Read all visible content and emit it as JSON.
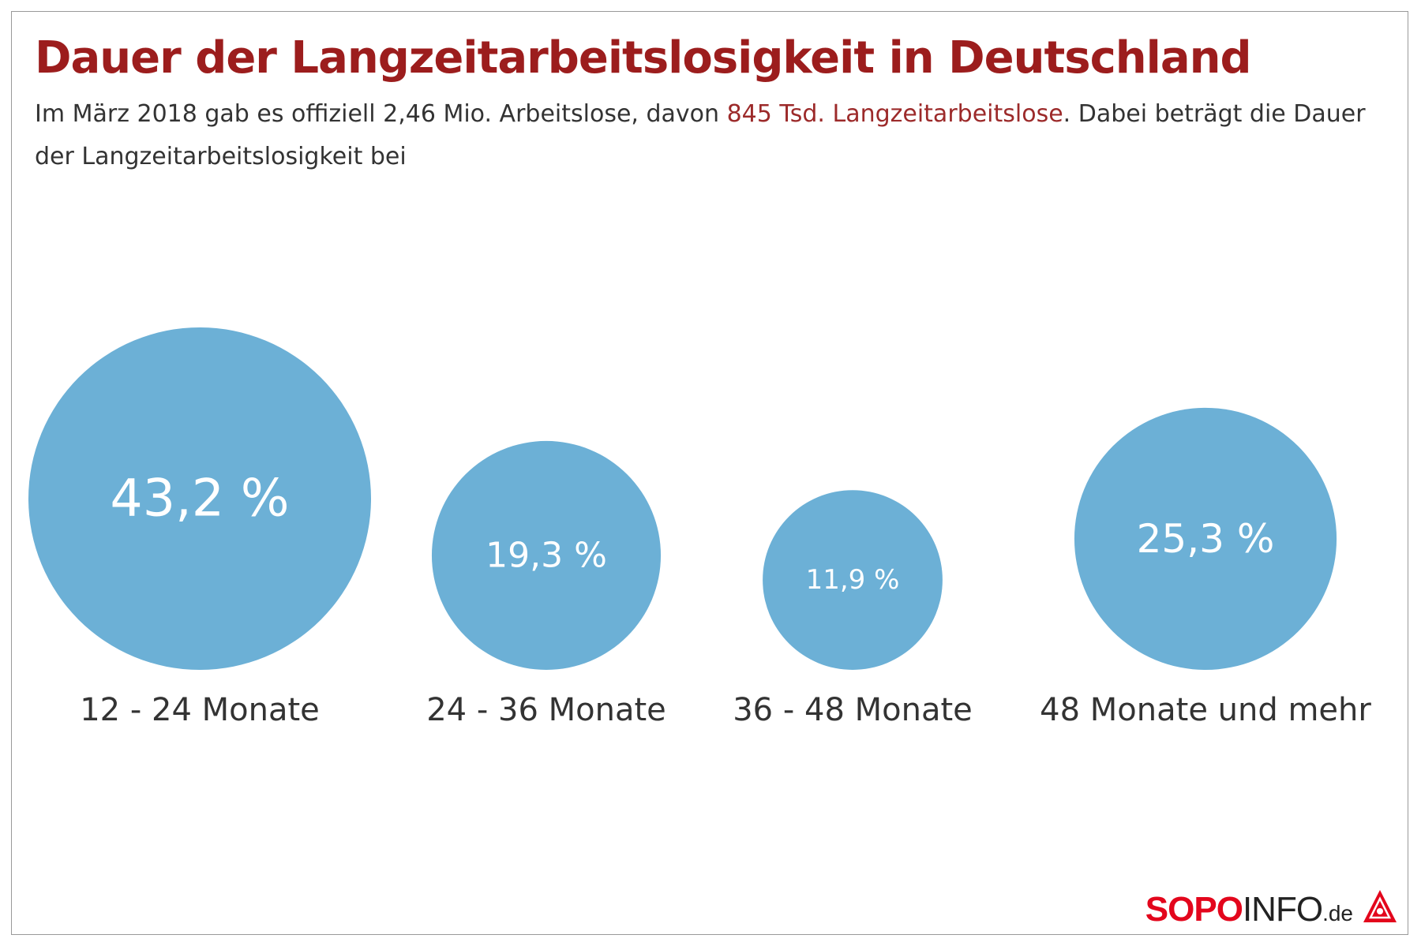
{
  "header": {
    "title": "Dauer der Langzeitarbeitslosigkeit in Deutschland",
    "subtitle_pre": "Im März 2018 gab es offiziell 2,46 Mio. Arbeitslose, davon ",
    "subtitle_highlight": "845 Tsd. Langzeitarbeitslose",
    "subtitle_post": ". Dabei beträgt die Dauer der Langzeitarbeitslosigkeit bei"
  },
  "chart_data": {
    "type": "bubble",
    "categories": [
      "12 - 24 Monate",
      "24 - 36 Monate",
      "36 - 48 Monate",
      "48 Monate und mehr"
    ],
    "values": [
      43.2,
      19.3,
      11.9,
      25.3
    ],
    "value_labels": [
      "43,2 %",
      "19,3 %",
      "11,9 %",
      "25,3 %"
    ],
    "unit": "%",
    "bubble_color": "#6cb0d6",
    "label_color": "#ffffff",
    "category_color": "#333333"
  },
  "logo": {
    "sopo": "SOPO",
    "info": "INFO",
    "de": ".de",
    "icon": "ig-metall-logo-icon",
    "accent_color": "#e3061c"
  }
}
